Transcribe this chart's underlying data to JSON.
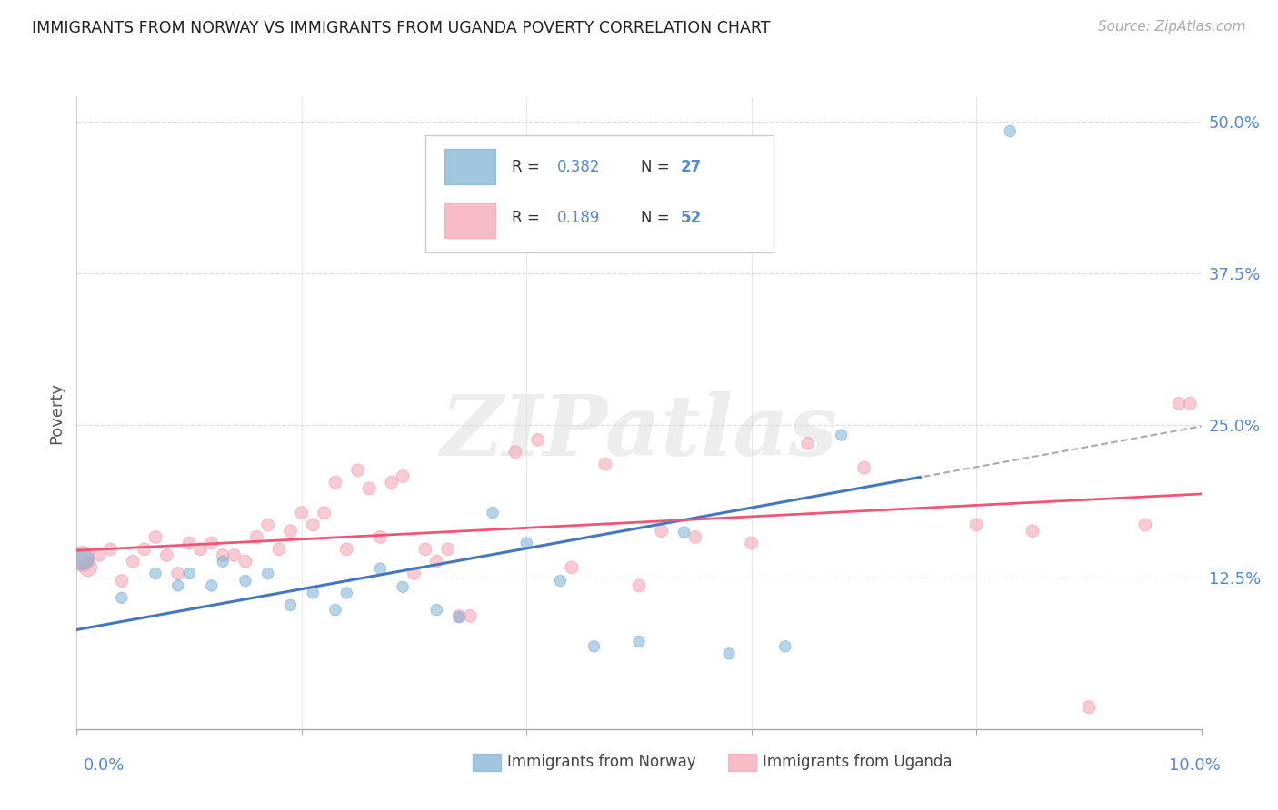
{
  "title": "IMMIGRANTS FROM NORWAY VS IMMIGRANTS FROM UGANDA POVERTY CORRELATION CHART",
  "source": "Source: ZipAtlas.com",
  "ylabel": "Poverty",
  "xlim": [
    0.0,
    0.1
  ],
  "ylim": [
    0.0,
    0.52
  ],
  "yticks": [
    0.0,
    0.125,
    0.25,
    0.375,
    0.5
  ],
  "ytick_labels": [
    "",
    "12.5%",
    "25.0%",
    "37.5%",
    "50.0%"
  ],
  "norway_color": "#7BAFD4",
  "uganda_color": "#F4A0B0",
  "norway_line_color": "#4477BB",
  "uganda_line_color": "#EE5577",
  "norway_R": 0.382,
  "norway_N": 27,
  "uganda_R": 0.189,
  "uganda_N": 52,
  "norway_scatter_x": [
    0.0005,
    0.004,
    0.007,
    0.009,
    0.01,
    0.012,
    0.013,
    0.015,
    0.017,
    0.019,
    0.021,
    0.023,
    0.024,
    0.027,
    0.029,
    0.032,
    0.034,
    0.037,
    0.04,
    0.043,
    0.046,
    0.05,
    0.054,
    0.058,
    0.063,
    0.068,
    0.083
  ],
  "norway_scatter_y": [
    0.14,
    0.108,
    0.128,
    0.118,
    0.128,
    0.118,
    0.138,
    0.122,
    0.128,
    0.102,
    0.112,
    0.098,
    0.112,
    0.132,
    0.117,
    0.098,
    0.092,
    0.178,
    0.153,
    0.122,
    0.068,
    0.072,
    0.162,
    0.062,
    0.068,
    0.242,
    0.492
  ],
  "uganda_scatter_x": [
    0.0005,
    0.001,
    0.002,
    0.003,
    0.004,
    0.005,
    0.006,
    0.007,
    0.008,
    0.009,
    0.01,
    0.011,
    0.012,
    0.013,
    0.014,
    0.015,
    0.016,
    0.017,
    0.018,
    0.019,
    0.02,
    0.021,
    0.022,
    0.023,
    0.024,
    0.025,
    0.026,
    0.027,
    0.028,
    0.029,
    0.03,
    0.031,
    0.032,
    0.033,
    0.034,
    0.035,
    0.039,
    0.041,
    0.044,
    0.047,
    0.05,
    0.052,
    0.055,
    0.06,
    0.065,
    0.07,
    0.08,
    0.085,
    0.09,
    0.095,
    0.098,
    0.099
  ],
  "uganda_scatter_y": [
    0.14,
    0.133,
    0.143,
    0.148,
    0.122,
    0.138,
    0.148,
    0.158,
    0.143,
    0.128,
    0.153,
    0.148,
    0.153,
    0.143,
    0.143,
    0.138,
    0.158,
    0.168,
    0.148,
    0.163,
    0.178,
    0.168,
    0.178,
    0.203,
    0.148,
    0.213,
    0.198,
    0.158,
    0.203,
    0.208,
    0.128,
    0.148,
    0.138,
    0.148,
    0.093,
    0.093,
    0.228,
    0.238,
    0.133,
    0.218,
    0.118,
    0.163,
    0.158,
    0.153,
    0.235,
    0.215,
    0.168,
    0.163,
    0.018,
    0.168,
    0.268,
    0.268
  ],
  "norway_sizes": [
    300,
    80,
    80,
    80,
    80,
    80,
    80,
    80,
    80,
    80,
    80,
    80,
    80,
    80,
    80,
    80,
    80,
    80,
    80,
    80,
    80,
    80,
    80,
    80,
    80,
    80,
    80
  ],
  "uganda_sizes": [
    400,
    200,
    100,
    100,
    100,
    100,
    100,
    100,
    100,
    100,
    100,
    100,
    100,
    100,
    100,
    100,
    100,
    100,
    100,
    100,
    100,
    100,
    100,
    100,
    100,
    100,
    100,
    100,
    100,
    100,
    100,
    100,
    100,
    100,
    100,
    100,
    100,
    100,
    100,
    100,
    100,
    100,
    100,
    100,
    100,
    100,
    100,
    100,
    100,
    100,
    100,
    100
  ],
  "watermark": "ZIPatlas",
  "tick_color": "#5588CC",
  "grid_color": "#DDDDDD",
  "legend_R_color": "#333333",
  "legend_N_color": "#5588CC"
}
